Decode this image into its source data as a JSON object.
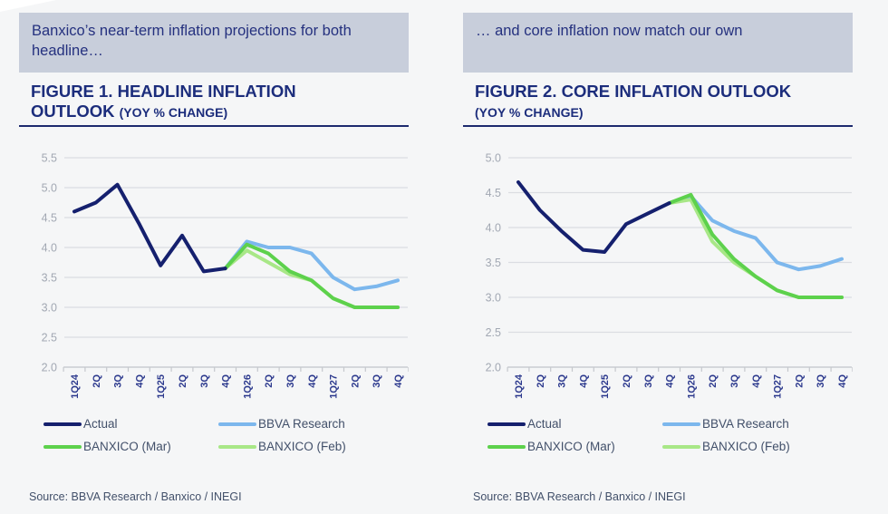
{
  "theme": {
    "page_bg": "#f5f6f7",
    "callout_bg": "#c8cedb",
    "callout_text": "#25317f",
    "title_color": "#1c2d7c",
    "rule_color": "#1d2a6e",
    "grid_color": "#dbdde2",
    "tick_color": "#c5c8cd",
    "yaxis_label_color": "#a2a8b3",
    "xaxis_label_color": "#2d3a8e",
    "legend_text": "#42506a",
    "source_text": "#42506a"
  },
  "figures": [
    {
      "callout": "Banxico’s near-term inflation projections for both headline…",
      "title_line1": "FIGURE 1. HEADLINE INFLATION",
      "title_line2": "OUTLOOK",
      "title_unit": "(YOY % CHANGE)",
      "source": "Source: BBVA Research / Banxico / INEGI",
      "chart_data": {
        "type": "line",
        "title": "Headline inflation outlook (YoY % change)",
        "categories": [
          "1Q24",
          "2Q",
          "3Q",
          "4Q",
          "1Q25",
          "2Q",
          "3Q",
          "4Q",
          "1Q26",
          "2Q",
          "3Q",
          "4Q",
          "1Q27",
          "2Q",
          "3Q",
          "4Q"
        ],
        "ylim": [
          2.0,
          5.5
        ],
        "ytick_step": 0.5,
        "grid": true,
        "legend_position": "bottom",
        "series": [
          {
            "name": "Actual",
            "color": "#15206e",
            "values": [
              4.6,
              4.75,
              5.05,
              4.4,
              3.7,
              4.2,
              3.6,
              3.65,
              null,
              null,
              null,
              null,
              null,
              null,
              null,
              null
            ]
          },
          {
            "name": "BBVA Research",
            "color": "#7cb7ed",
            "values": [
              null,
              null,
              null,
              null,
              null,
              null,
              null,
              3.65,
              4.1,
              4.0,
              4.0,
              3.9,
              3.5,
              3.3,
              3.35,
              3.45
            ]
          },
          {
            "name": "BANXICO (Mar)",
            "color": "#5dd14c",
            "values": [
              null,
              null,
              null,
              null,
              null,
              null,
              null,
              3.65,
              4.05,
              3.9,
              3.6,
              3.45,
              3.15,
              3.0,
              3.0,
              3.0
            ]
          },
          {
            "name": "BANXICO (Feb)",
            "color": "#a8e787",
            "values": [
              null,
              null,
              null,
              null,
              null,
              null,
              null,
              3.65,
              3.95,
              3.75,
              3.55,
              3.45,
              3.15,
              3.0,
              3.0,
              3.0
            ]
          }
        ]
      }
    },
    {
      "callout": "… and core inflation now match our own",
      "title_line1": "FIGURE 2. CORE INFLATION OUTLOOK",
      "title_line2": "",
      "title_unit": "(YOY % CHANGE)",
      "source": "Source: BBVA Research / Banxico / INEGI",
      "chart_data": {
        "type": "line",
        "title": "Core inflation outlook (YoY % change)",
        "categories": [
          "1Q24",
          "2Q",
          "3Q",
          "4Q",
          "1Q25",
          "2Q",
          "3Q",
          "4Q",
          "1Q26",
          "2Q",
          "3Q",
          "4Q",
          "1Q27",
          "2Q",
          "3Q",
          "4Q"
        ],
        "ylim": [
          2.0,
          5.0
        ],
        "ytick_step": 0.5,
        "grid": true,
        "legend_position": "bottom",
        "series": [
          {
            "name": "Actual",
            "color": "#15206e",
            "values": [
              4.65,
              4.25,
              3.95,
              3.68,
              3.65,
              4.05,
              4.2,
              4.35,
              null,
              null,
              null,
              null,
              null,
              null,
              null,
              null
            ]
          },
          {
            "name": "BBVA Research",
            "color": "#7cb7ed",
            "values": [
              null,
              null,
              null,
              null,
              null,
              null,
              null,
              4.35,
              4.45,
              4.1,
              3.95,
              3.85,
              3.5,
              3.4,
              3.45,
              3.55
            ]
          },
          {
            "name": "BANXICO (Mar)",
            "color": "#5dd14c",
            "values": [
              null,
              null,
              null,
              null,
              null,
              null,
              null,
              4.35,
              4.47,
              3.9,
              3.55,
              3.3,
              3.1,
              3.0,
              3.0,
              3.0
            ]
          },
          {
            "name": "BANXICO (Feb)",
            "color": "#a8e787",
            "values": [
              null,
              null,
              null,
              null,
              null,
              null,
              null,
              4.35,
              4.4,
              3.8,
              3.5,
              3.3,
              3.1,
              3.0,
              3.0,
              3.0
            ]
          }
        ]
      }
    }
  ]
}
